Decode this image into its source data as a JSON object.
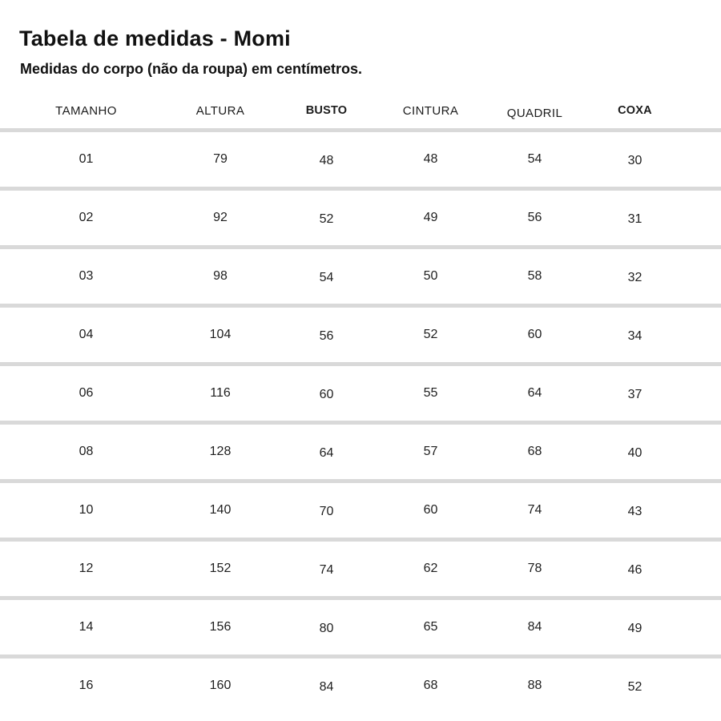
{
  "page": {
    "title": "Tabela de medidas - Momi",
    "subtitle": "Medidas do corpo (não da roupa) em centímetros."
  },
  "table": {
    "columns": [
      "TAMANHO",
      "ALTURA",
      "BUSTO",
      "CINTURA",
      "QUADRIL",
      "COXA"
    ],
    "rows": [
      [
        "01",
        "79",
        "48",
        "48",
        "54",
        "30"
      ],
      [
        "02",
        "92",
        "52",
        "49",
        "56",
        "31"
      ],
      [
        "03",
        "98",
        "54",
        "50",
        "58",
        "32"
      ],
      [
        "04",
        "104",
        "56",
        "52",
        "60",
        "34"
      ],
      [
        "06",
        "116",
        "60",
        "55",
        "64",
        "37"
      ],
      [
        "08",
        "128",
        "64",
        "57",
        "68",
        "40"
      ],
      [
        "10",
        "140",
        "70",
        "60",
        "74",
        "43"
      ],
      [
        "12",
        "152",
        "74",
        "62",
        "78",
        "46"
      ],
      [
        "14",
        "156",
        "80",
        "65",
        "84",
        "49"
      ],
      [
        "16",
        "160",
        "84",
        "68",
        "88",
        "52"
      ]
    ]
  },
  "colors": {
    "background": "#ffffff",
    "text": "#1a1a1a",
    "separator": "#d9d9d9"
  }
}
